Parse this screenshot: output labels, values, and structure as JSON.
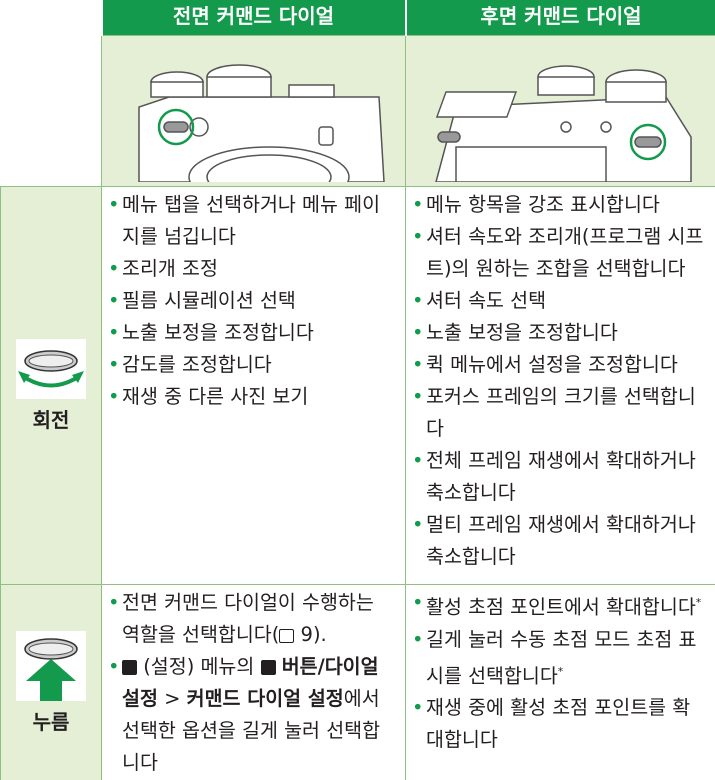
{
  "table": {
    "columns": [
      "전면 커맨드 다이얼",
      "후면 커맨드 다이얼"
    ],
    "rows": [
      {
        "label": "회전",
        "front": [
          "메뉴 탭을 선택하거나 메뉴 페이지를 넘깁니다",
          "조리개 조정",
          "필름 시뮬레이션 선택",
          "노출 보정을 조정합니다",
          "감도를 조정합니다",
          "재생 중 다른 사진 보기"
        ],
        "rear": [
          "메뉴 항목을 강조 표시합니다",
          "셔터 속도와 조리개(프로그램 시프트)의 원하는 조합을 선택합니다",
          "셔터 속도 선택",
          "노출 보정을 조정합니다",
          "퀵 메뉴에서 설정을 조정합니다",
          "포커스 프레임의 크기를 선택합니다",
          "전체 프레임 재생에서 확대하거나 축소합니다",
          "멀티 프레임 재생에서 확대하거나 축소합니다"
        ]
      },
      {
        "label": "누름",
        "front": [
          {
            "text": "전면 커맨드 다이얼이 수행하는 역할을 선택합니다(",
            "ref": "9)."
          },
          [
            "(설정) 메뉴의",
            "버튼/다이얼 설정",
            ">",
            "커맨드 다이얼 설정",
            "에서 선택한 옵션을 길게 눌러 선택합니다"
          ]
        ],
        "rear": [
          {
            "text": "활성 초점 포인트에서 확대합니다",
            "note": "*"
          },
          {
            "text": "길게 눌러 수동 초점 모드 초점 표시를 선택합니다",
            "note": "*"
          },
          {
            "text": "재생 중에 활성 초점 포인트를 확대합니다"
          }
        ]
      }
    ]
  }
}
